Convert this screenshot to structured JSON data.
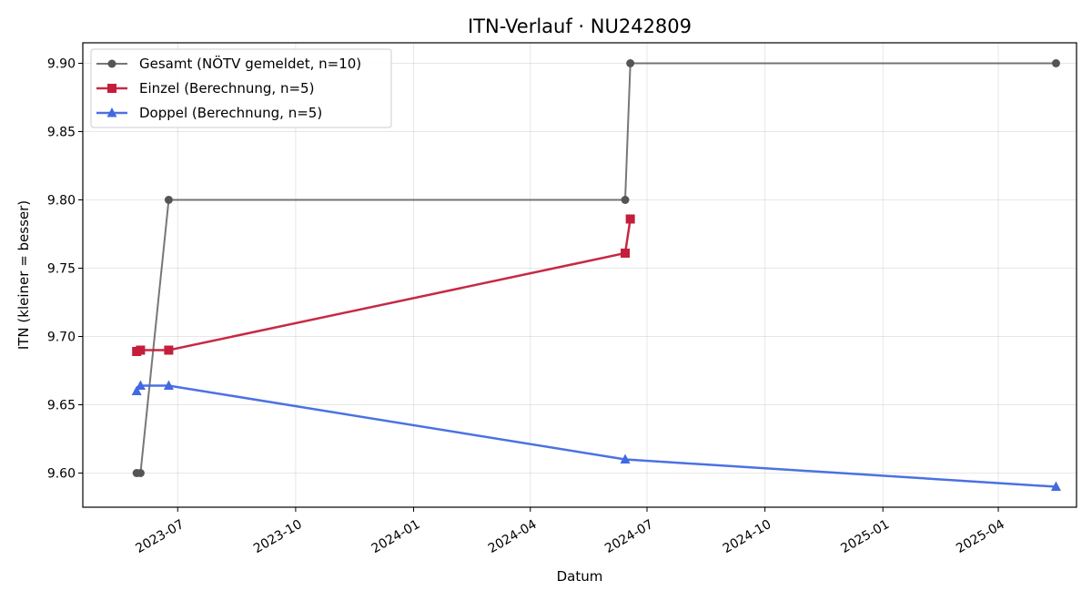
{
  "chart_data": {
    "type": "line",
    "title": "ITN-Verlauf · NU242809",
    "xlabel": "Datum",
    "ylabel": "ITN  (kleiner = besser)",
    "xlim": [
      "2023-04-18",
      "2025-06-01"
    ],
    "ylim": [
      9.575,
      9.915
    ],
    "x_ticks": [
      "2023-07",
      "2023-10",
      "2024-01",
      "2024-04",
      "2024-07",
      "2024-10",
      "2025-01",
      "2025-04"
    ],
    "y_ticks": [
      "9.60",
      "9.65",
      "9.70",
      "9.75",
      "9.80",
      "9.85",
      "9.90"
    ],
    "grid": true,
    "legend_position": "top-left",
    "series": [
      {
        "name": "Gesamt (NÖTV gemeldet, n=10)",
        "color": "#555555",
        "marker": "circle",
        "points": [
          {
            "x": "2023-05-30",
            "y": 9.6
          },
          {
            "x": "2023-06-02",
            "y": 9.6
          },
          {
            "x": "2023-06-24",
            "y": 9.8
          },
          {
            "x": "2024-06-14",
            "y": 9.8
          },
          {
            "x": "2024-06-18",
            "y": 9.9
          },
          {
            "x": "2025-05-16",
            "y": 9.9
          }
        ]
      },
      {
        "name": "Einzel (Berechnung, n=5)",
        "color": "#c41e3a",
        "marker": "square",
        "points": [
          {
            "x": "2023-05-30",
            "y": 9.689
          },
          {
            "x": "2023-06-02",
            "y": 9.69
          },
          {
            "x": "2023-06-24",
            "y": 9.69
          },
          {
            "x": "2024-06-14",
            "y": 9.761
          },
          {
            "x": "2024-06-18",
            "y": 9.786
          }
        ]
      },
      {
        "name": "Doppel (Berechnung, n=5)",
        "color": "#4169e1",
        "marker": "triangle",
        "points": [
          {
            "x": "2023-05-30",
            "y": 9.66
          },
          {
            "x": "2023-06-02",
            "y": 9.664
          },
          {
            "x": "2023-06-24",
            "y": 9.664
          },
          {
            "x": "2024-06-14",
            "y": 9.61
          },
          {
            "x": "2025-05-16",
            "y": 9.59
          }
        ]
      }
    ]
  }
}
